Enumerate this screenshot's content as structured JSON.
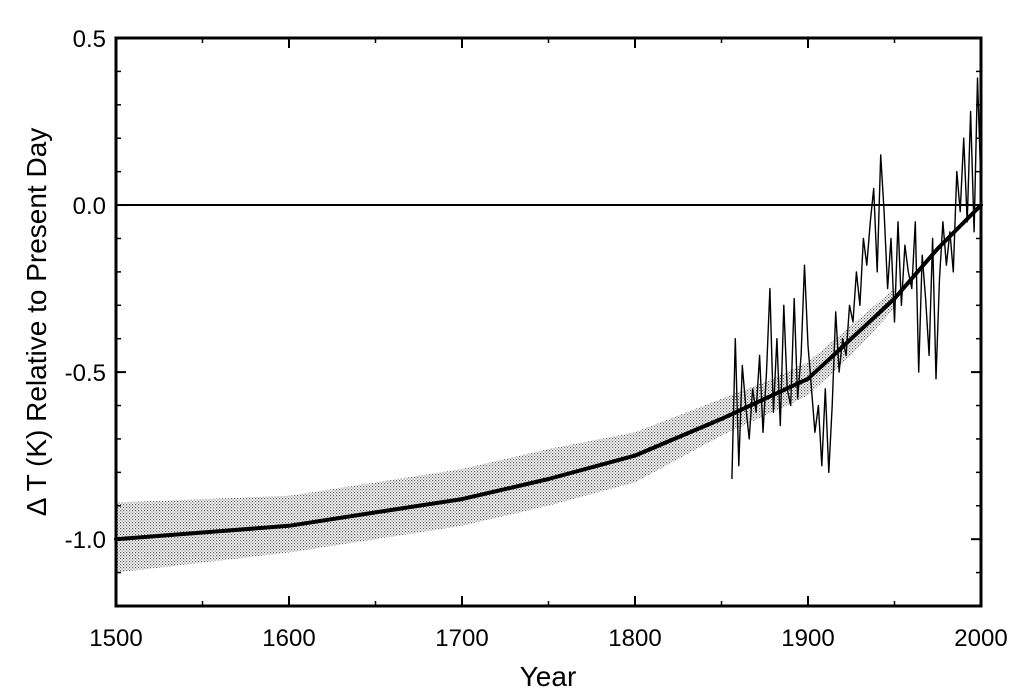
{
  "chart_data": {
    "type": "line",
    "xlabel": "Year",
    "ylabel": "Δ T (K) Relative to Present Day",
    "xlim": [
      1500,
      2000
    ],
    "ylim": [
      -1.2,
      0.5
    ],
    "x_ticks": [
      1500,
      1600,
      1700,
      1800,
      1900,
      2000
    ],
    "x_tick_labels": [
      "1500",
      "1600",
      "1700",
      "1800",
      "1900",
      "2000"
    ],
    "y_ticks": [
      0.5,
      0.0,
      -0.5,
      -1.0
    ],
    "y_tick_labels": [
      "0.5",
      "0.0",
      "-0.5",
      "-1.0"
    ],
    "reference_line_y": 0.0,
    "series": [
      {
        "name": "reconstruction",
        "style": "thick-solid",
        "x": [
          1500,
          1550,
          1600,
          1650,
          1700,
          1750,
          1800,
          1850,
          1875,
          1900,
          1925,
          1950,
          1975,
          2000
        ],
        "y": [
          -1.0,
          -0.98,
          -0.96,
          -0.92,
          -0.88,
          -0.82,
          -0.75,
          -0.64,
          -0.58,
          -0.52,
          -0.4,
          -0.28,
          -0.13,
          0.0
        ]
      },
      {
        "name": "uncertainty-band",
        "style": "shaded-band",
        "x": [
          1500,
          1550,
          1600,
          1650,
          1700,
          1750,
          1800,
          1850,
          1875,
          1900,
          1925,
          1950
        ],
        "y_upper": [
          -0.89,
          -0.88,
          -0.87,
          -0.83,
          -0.79,
          -0.73,
          -0.68,
          -0.58,
          -0.53,
          -0.47,
          -0.36,
          -0.25
        ],
        "y_lower": [
          -1.1,
          -1.07,
          -1.04,
          -1.0,
          -0.96,
          -0.9,
          -0.83,
          -0.69,
          -0.63,
          -0.57,
          -0.45,
          -0.31
        ]
      },
      {
        "name": "instrumental-record",
        "style": "thin-solid",
        "x": [
          1856,
          1858,
          1860,
          1862,
          1864,
          1866,
          1868,
          1870,
          1872,
          1874,
          1876,
          1878,
          1880,
          1882,
          1884,
          1886,
          1888,
          1890,
          1892,
          1894,
          1896,
          1898,
          1900,
          1902,
          1904,
          1906,
          1908,
          1910,
          1912,
          1914,
          1916,
          1918,
          1920,
          1922,
          1924,
          1926,
          1928,
          1930,
          1932,
          1934,
          1936,
          1938,
          1940,
          1942,
          1944,
          1946,
          1948,
          1950,
          1952,
          1954,
          1956,
          1958,
          1960,
          1962,
          1964,
          1966,
          1968,
          1970,
          1972,
          1974,
          1976,
          1978,
          1980,
          1982,
          1984,
          1986,
          1988,
          1990,
          1992,
          1994,
          1996,
          1998,
          2000
        ],
        "y": [
          -0.82,
          -0.4,
          -0.78,
          -0.48,
          -0.6,
          -0.7,
          -0.55,
          -0.62,
          -0.45,
          -0.68,
          -0.5,
          -0.25,
          -0.62,
          -0.4,
          -0.66,
          -0.3,
          -0.55,
          -0.6,
          -0.28,
          -0.58,
          -0.45,
          -0.18,
          -0.42,
          -0.55,
          -0.68,
          -0.6,
          -0.78,
          -0.55,
          -0.8,
          -0.6,
          -0.32,
          -0.5,
          -0.4,
          -0.45,
          -0.3,
          -0.35,
          -0.2,
          -0.3,
          -0.1,
          -0.18,
          -0.05,
          0.05,
          -0.2,
          0.15,
          -0.02,
          -0.25,
          -0.1,
          -0.35,
          -0.05,
          -0.3,
          -0.12,
          -0.2,
          -0.25,
          -0.05,
          -0.5,
          -0.15,
          -0.28,
          -0.45,
          -0.1,
          -0.52,
          -0.22,
          -0.05,
          -0.18,
          -0.08,
          -0.2,
          0.1,
          -0.02,
          0.2,
          -0.05,
          0.28,
          -0.08,
          0.38,
          0.05
        ]
      }
    ]
  }
}
